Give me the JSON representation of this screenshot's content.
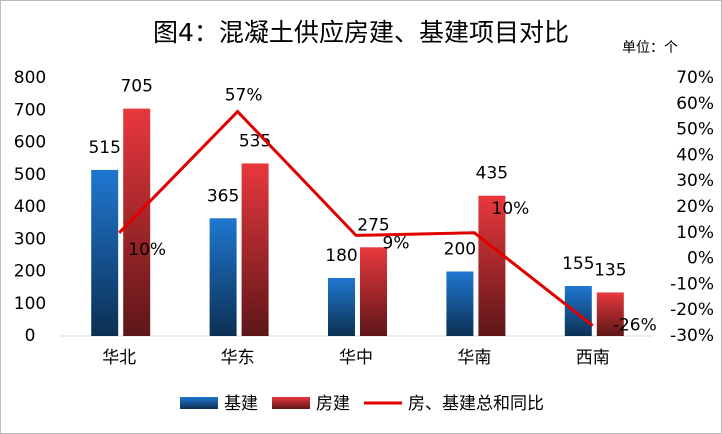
{
  "chart_data": {
    "type": "bar-line",
    "title": "图4：混凝土供应房建、基建项目对比",
    "unit_label": "单位：个",
    "categories": [
      "华北",
      "华东",
      "华中",
      "华南",
      "西南"
    ],
    "series": [
      {
        "name": "基建",
        "type": "bar",
        "color": "#1f77d0",
        "values": [
          515,
          365,
          180,
          200,
          155
        ]
      },
      {
        "name": "房建",
        "type": "bar",
        "color": "#e8383d",
        "values": [
          705,
          535,
          275,
          435,
          135
        ]
      },
      {
        "name": "房、基建总和同比",
        "type": "line",
        "axis": "y2",
        "color": "#e00000",
        "values": [
          10,
          57,
          9,
          10,
          -26
        ],
        "value_labels": [
          "10%",
          "57%",
          "9%",
          "10%",
          "-26%"
        ]
      }
    ],
    "ylim": [
      0,
      800
    ],
    "yticks": [
      0,
      100,
      200,
      300,
      400,
      500,
      600,
      700,
      800
    ],
    "y2lim": [
      -30,
      70
    ],
    "y2ticks": [
      {
        "value": -30,
        "label": "-30%"
      },
      {
        "value": -20,
        "label": "-20%"
      },
      {
        "value": -10,
        "label": "-10%"
      },
      {
        "value": 0,
        "label": "0%"
      },
      {
        "value": 10,
        "label": "10%"
      },
      {
        "value": 20,
        "label": "20%"
      },
      {
        "value": 30,
        "label": "30%"
      },
      {
        "value": 40,
        "label": "40%"
      },
      {
        "value": 50,
        "label": "50%"
      },
      {
        "value": 60,
        "label": "60%"
      },
      {
        "value": 70,
        "label": "70%"
      }
    ],
    "legend": "bottom"
  }
}
